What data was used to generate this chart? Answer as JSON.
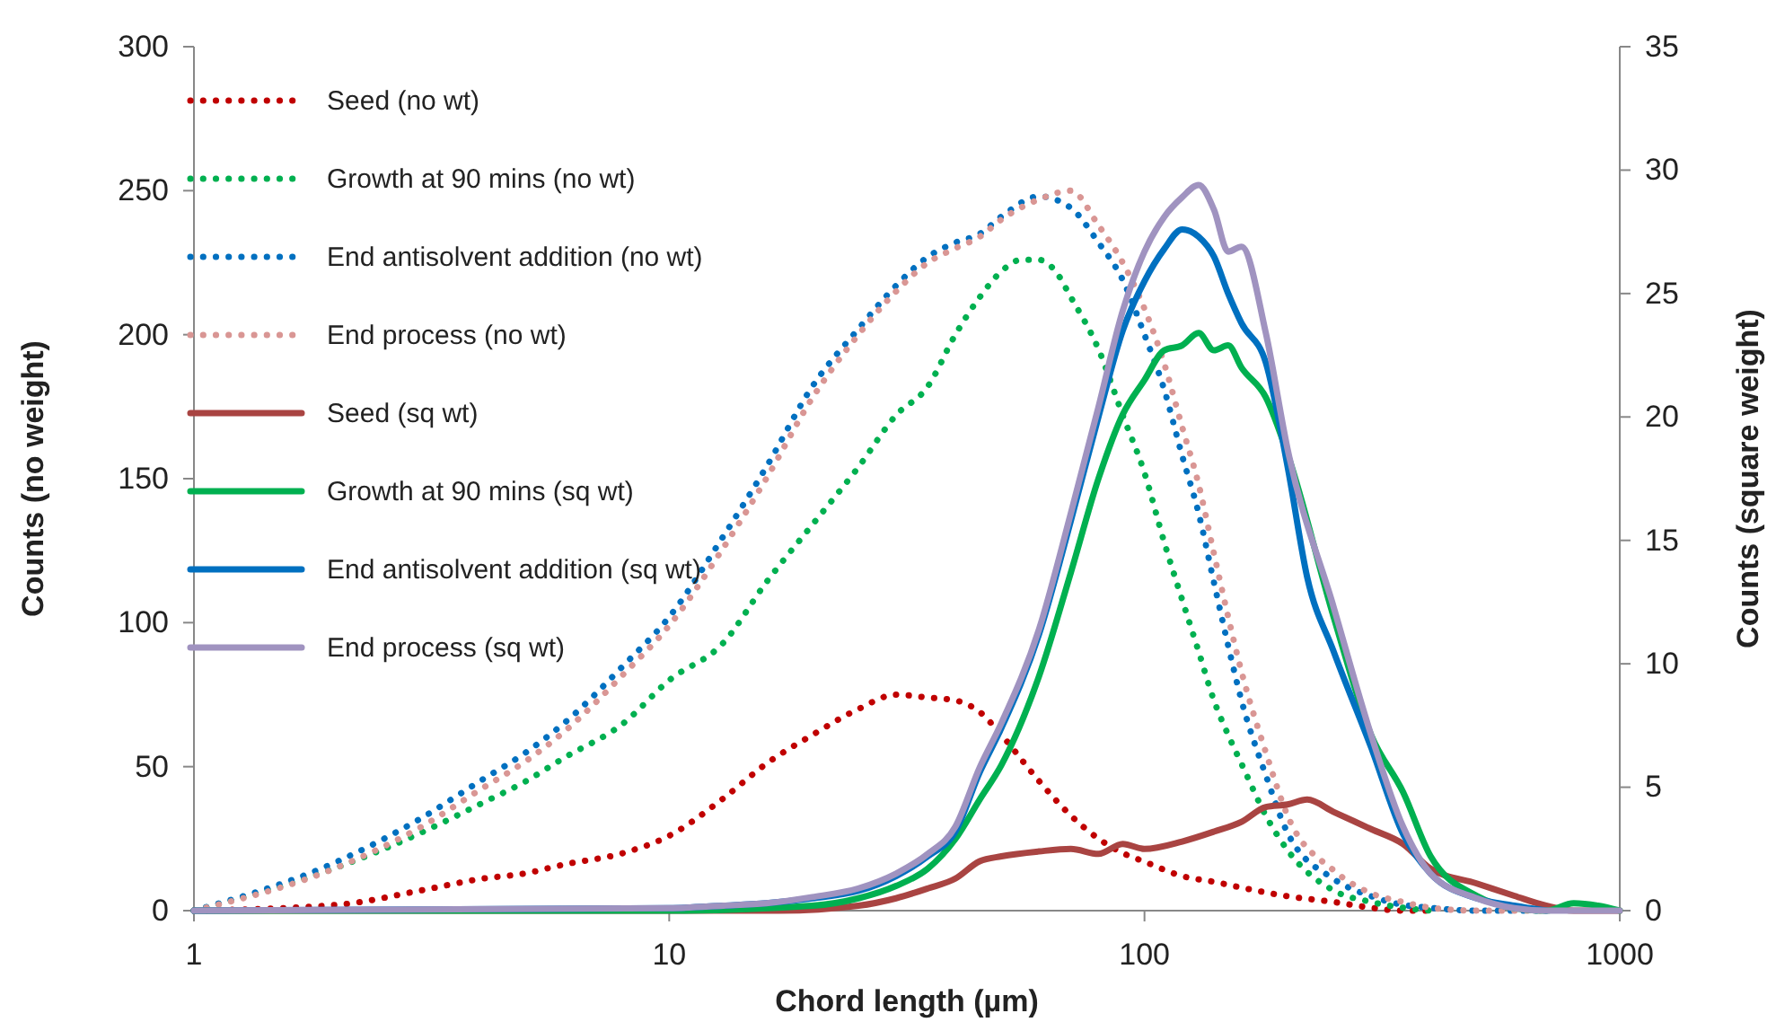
{
  "chart_data": {
    "type": "line",
    "xlabel": "Chord length (µm)",
    "ylabel": "Counts (no weight)",
    "y2label": "Counts (square weight)",
    "log": "x",
    "xlim": [
      1,
      1000
    ],
    "xticks": [
      1,
      10,
      100,
      1000
    ],
    "ylim": [
      0,
      300
    ],
    "yticks": [
      0,
      50,
      100,
      150,
      200,
      250,
      300
    ],
    "y2lim": [
      0,
      35
    ],
    "y2ticks": [
      0,
      5,
      10,
      15,
      20,
      25,
      30,
      35
    ],
    "grid": false,
    "legend": "top left",
    "marker": "none",
    "series": [
      {
        "name": "Seed (no wt)",
        "color": "#c00000",
        "line_style": "dotted",
        "x": [
          1,
          2,
          3,
          4,
          5,
          6,
          8,
          10,
          13,
          16,
          20,
          25,
          30,
          35,
          40,
          45,
          50,
          60,
          70,
          80,
          90,
          100,
          120,
          140,
          160,
          200,
          250,
          300,
          350,
          400
        ],
        "values": [
          0,
          2,
          7,
          11,
          13,
          16,
          20,
          26,
          39,
          51,
          61,
          70,
          75,
          74,
          73,
          69,
          61,
          45,
          33,
          25,
          20,
          17,
          12,
          10,
          8,
          5,
          3,
          1,
          0,
          0
        ]
      },
      {
        "name": "Growth at 90 mins (no wt)",
        "color": "#00b050",
        "line_style": "dotted",
        "x": [
          1,
          2,
          3,
          4,
          5,
          6,
          8,
          10,
          13,
          16,
          20,
          25,
          30,
          35,
          40,
          45,
          50,
          55,
          60,
          65,
          70,
          80,
          90,
          100,
          110,
          120,
          130,
          140,
          150,
          160,
          180,
          200,
          250,
          300,
          350,
          400
        ],
        "values": [
          0,
          15,
          27,
          37,
          45,
          53,
          65,
          80,
          93,
          114,
          134,
          154,
          172,
          182,
          200,
          213,
          222,
          226,
          226,
          222,
          213,
          195,
          172,
          152,
          128,
          108,
          90,
          73,
          61,
          51,
          33,
          21,
          7,
          3,
          1,
          0
        ]
      },
      {
        "name": "End antisolvent addition (no wt)",
        "color": "#0070c0",
        "line_style": "dotted",
        "x": [
          1,
          2,
          3,
          4,
          5,
          6,
          8,
          10,
          13,
          16,
          20,
          25,
          30,
          35,
          40,
          45,
          50,
          60,
          70,
          80,
          90,
          100,
          110,
          120,
          130,
          140,
          150,
          160,
          180,
          200,
          250,
          300,
          350,
          400,
          500,
          700
        ],
        "values": [
          0,
          17,
          32,
          45,
          55,
          65,
          85,
          102,
          130,
          154,
          182,
          202,
          217,
          227,
          232,
          235,
          241,
          248,
          244,
          232,
          219,
          200,
          181,
          158,
          138,
          114,
          92,
          73,
          47,
          27,
          11,
          5,
          2,
          1,
          0,
          0
        ]
      },
      {
        "name": "End process (no wt)",
        "color": "#d99694",
        "line_style": "dotted",
        "x": [
          1,
          2,
          3,
          4,
          5,
          6,
          8,
          10,
          13,
          16,
          20,
          25,
          30,
          35,
          40,
          45,
          50,
          60,
          70,
          80,
          90,
          100,
          110,
          120,
          130,
          140,
          150,
          160,
          180,
          200,
          250,
          300,
          350,
          400,
          500,
          700
        ],
        "values": [
          0,
          15,
          29,
          42,
          52,
          62,
          82,
          99,
          126,
          150,
          178,
          200,
          215,
          225,
          230,
          234,
          240,
          247,
          250,
          238,
          225,
          209,
          190,
          168,
          148,
          124,
          102,
          83,
          55,
          33,
          14,
          6,
          3,
          1,
          0,
          0
        ]
      },
      {
        "name": "Seed (sq wt)",
        "color": "#a94442",
        "line_style": "solid",
        "axis": "y2",
        "x": [
          1,
          10,
          17,
          25,
          30,
          35,
          40,
          45,
          50,
          60,
          70,
          80,
          90,
          100,
          120,
          140,
          160,
          180,
          200,
          220,
          250,
          300,
          350,
          400,
          500,
          600,
          700,
          800,
          1000
        ],
        "values": [
          0,
          0,
          0,
          0.2,
          0.5,
          0.9,
          1.3,
          2.0,
          2.2,
          2.4,
          2.5,
          2.3,
          2.7,
          2.5,
          2.8,
          3.2,
          3.6,
          4.2,
          4.3,
          4.5,
          4.0,
          3.3,
          2.7,
          1.7,
          1.1,
          0.6,
          0.2,
          0,
          0
        ]
      },
      {
        "name": "Growth at 90 mins (sq wt)",
        "color": "#00b050",
        "line_style": "solid",
        "axis": "y2",
        "x": [
          1,
          10,
          20,
          25,
          30,
          35,
          40,
          45,
          50,
          60,
          70,
          80,
          90,
          100,
          110,
          120,
          130,
          140,
          150,
          160,
          180,
          200,
          250,
          300,
          350,
          400,
          500,
          600,
          700,
          800,
          900,
          1000
        ],
        "values": [
          0,
          0,
          0.2,
          0.5,
          1.0,
          1.7,
          2.9,
          4.5,
          5.9,
          9.5,
          13.7,
          17.5,
          20.1,
          21.5,
          22.7,
          22.9,
          23.4,
          22.7,
          22.9,
          22.0,
          20.8,
          18.5,
          11.9,
          7.1,
          4.8,
          2.2,
          0.6,
          0.1,
          0,
          0.3,
          0.2,
          0
        ]
      },
      {
        "name": "End antisolvent addition (sq wt)",
        "color": "#0070c0",
        "line_style": "solid",
        "axis": "y2",
        "x": [
          1,
          10,
          13,
          16,
          20,
          25,
          30,
          35,
          40,
          45,
          50,
          60,
          70,
          80,
          90,
          100,
          110,
          120,
          130,
          140,
          150,
          160,
          180,
          200,
          220,
          250,
          300,
          350,
          400,
          500,
          600,
          700
        ],
        "values": [
          0,
          0.1,
          0.2,
          0.3,
          0.5,
          0.8,
          1.4,
          2.2,
          3.2,
          5.6,
          7.4,
          11.2,
          15.8,
          20.0,
          23.5,
          25.5,
          26.8,
          27.6,
          27.3,
          26.5,
          25.0,
          23.8,
          22.2,
          18.0,
          13.5,
          10.5,
          6.6,
          3.1,
          1.5,
          0.5,
          0.2,
          0
        ]
      },
      {
        "name": "End process (sq wt)",
        "color": "#a093c0",
        "line_style": "solid",
        "axis": "y2",
        "x": [
          1,
          10,
          13,
          16,
          20,
          25,
          30,
          35,
          40,
          45,
          50,
          60,
          70,
          80,
          90,
          100,
          110,
          120,
          130,
          140,
          150,
          160,
          180,
          200,
          250,
          300,
          350,
          400,
          500,
          600,
          700,
          1000
        ],
        "values": [
          0,
          0.1,
          0.2,
          0.3,
          0.55,
          0.9,
          1.5,
          2.3,
          3.4,
          5.8,
          7.6,
          11.4,
          16.1,
          20.4,
          24.3,
          26.7,
          28.1,
          28.9,
          29.4,
          28.4,
          26.7,
          26.9,
          23.4,
          18.7,
          12.3,
          7.1,
          3.4,
          1.5,
          0.5,
          0.1,
          0,
          0
        ]
      }
    ]
  }
}
